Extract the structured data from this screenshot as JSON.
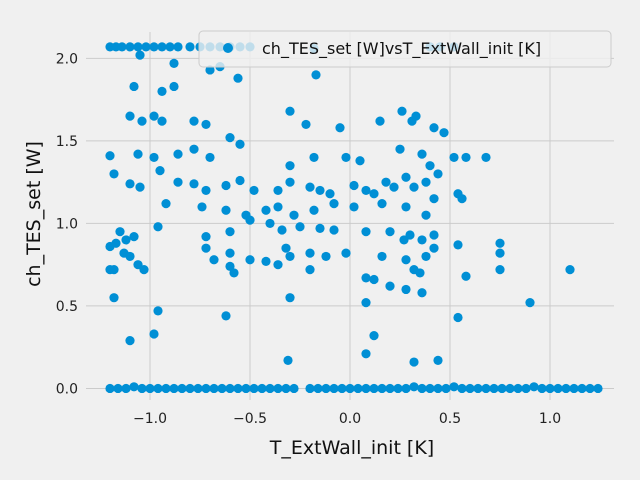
{
  "chart_data": {
    "type": "scatter",
    "xlabel": "T_ExtWall_init [K]",
    "ylabel": "ch_TES_set [W]",
    "legend_label": "ch_TES_set [W]vsT_ExtWall_init [K]",
    "legend_position": "top-right",
    "grid": true,
    "xlim": [
      -1.32,
      1.32
    ],
    "ylim": [
      -0.07,
      2.16
    ],
    "x_ticks": [
      -1.0,
      -0.5,
      0.0,
      0.5,
      1.0
    ],
    "x_tick_labels": [
      "−1.0",
      "−0.5",
      "0.0",
      "0.5",
      "1.0"
    ],
    "y_ticks": [
      0.0,
      0.5,
      1.0,
      1.5,
      2.0
    ],
    "y_tick_labels": [
      "0.0",
      "0.5",
      "1.0",
      "1.5",
      "2.0"
    ],
    "marker_color": "#008fd5",
    "series": [
      {
        "name": "ch_TES_set [W]vsT_ExtWall_init [K]",
        "points": [
          [
            -1.2,
            2.07
          ],
          [
            -1.17,
            2.07
          ],
          [
            -1.14,
            2.07
          ],
          [
            -1.1,
            2.07
          ],
          [
            -1.06,
            2.07
          ],
          [
            -1.02,
            2.07
          ],
          [
            -0.98,
            2.07
          ],
          [
            -0.94,
            2.07
          ],
          [
            -0.9,
            2.07
          ],
          [
            -0.86,
            2.07
          ],
          [
            -0.8,
            2.07
          ],
          [
            -0.75,
            2.07
          ],
          [
            -0.7,
            2.07
          ],
          [
            -0.65,
            2.07
          ],
          [
            -0.6,
            2.07
          ],
          [
            -0.55,
            2.07
          ],
          [
            -0.5,
            2.07
          ],
          [
            -0.18,
            2.06
          ],
          [
            0.4,
            2.07
          ],
          [
            0.45,
            2.07
          ],
          [
            0.52,
            2.07
          ],
          [
            -1.05,
            2.02
          ],
          [
            -0.88,
            1.97
          ],
          [
            -0.7,
            1.93
          ],
          [
            -0.65,
            1.95
          ],
          [
            -0.56,
            1.88
          ],
          [
            -0.17,
            1.9
          ],
          [
            -1.08,
            1.83
          ],
          [
            -0.94,
            1.8
          ],
          [
            -0.88,
            1.83
          ],
          [
            -0.3,
            1.68
          ],
          [
            0.26,
            1.68
          ],
          [
            -1.1,
            1.65
          ],
          [
            -1.04,
            1.62
          ],
          [
            -0.98,
            1.65
          ],
          [
            -0.94,
            1.62
          ],
          [
            -0.78,
            1.62
          ],
          [
            -0.72,
            1.6
          ],
          [
            -0.22,
            1.6
          ],
          [
            -0.05,
            1.58
          ],
          [
            0.15,
            1.62
          ],
          [
            0.31,
            1.62
          ],
          [
            0.33,
            1.65
          ],
          [
            0.42,
            1.58
          ],
          [
            0.47,
            1.55
          ],
          [
            -1.2,
            1.41
          ],
          [
            -1.06,
            1.42
          ],
          [
            -0.98,
            1.4
          ],
          [
            -0.86,
            1.42
          ],
          [
            -0.78,
            1.45
          ],
          [
            -0.7,
            1.4
          ],
          [
            -0.6,
            1.52
          ],
          [
            -0.55,
            1.48
          ],
          [
            -0.3,
            1.35
          ],
          [
            -0.18,
            1.4
          ],
          [
            -0.02,
            1.4
          ],
          [
            0.05,
            1.38
          ],
          [
            0.25,
            1.45
          ],
          [
            0.36,
            1.42
          ],
          [
            0.4,
            1.35
          ],
          [
            0.52,
            1.4
          ],
          [
            0.58,
            1.4
          ],
          [
            0.68,
            1.4
          ],
          [
            -1.18,
            1.3
          ],
          [
            -1.1,
            1.24
          ],
          [
            -1.05,
            1.22
          ],
          [
            -0.95,
            1.32
          ],
          [
            -0.86,
            1.25
          ],
          [
            -0.78,
            1.24
          ],
          [
            -0.72,
            1.2
          ],
          [
            -0.62,
            1.23
          ],
          [
            -0.55,
            1.26
          ],
          [
            -0.48,
            1.2
          ],
          [
            -0.36,
            1.2
          ],
          [
            -0.3,
            1.25
          ],
          [
            -0.2,
            1.22
          ],
          [
            -0.15,
            1.2
          ],
          [
            -0.1,
            1.18
          ],
          [
            0.02,
            1.23
          ],
          [
            0.08,
            1.2
          ],
          [
            0.12,
            1.18
          ],
          [
            0.18,
            1.25
          ],
          [
            0.22,
            1.22
          ],
          [
            0.28,
            1.28
          ],
          [
            0.32,
            1.22
          ],
          [
            0.38,
            1.25
          ],
          [
            0.44,
            1.3
          ],
          [
            0.54,
            1.18
          ],
          [
            0.56,
            1.15
          ],
          [
            -0.92,
            1.12
          ],
          [
            -0.74,
            1.1
          ],
          [
            -0.62,
            1.08
          ],
          [
            -0.52,
            1.05
          ],
          [
            -0.42,
            1.08
          ],
          [
            -0.36,
            1.1
          ],
          [
            -0.28,
            1.05
          ],
          [
            -0.18,
            1.08
          ],
          [
            -0.08,
            1.12
          ],
          [
            0.02,
            1.1
          ],
          [
            0.16,
            1.12
          ],
          [
            0.28,
            1.1
          ],
          [
            0.38,
            1.05
          ],
          [
            0.42,
            1.15
          ],
          [
            -1.15,
            0.95
          ],
          [
            -1.12,
            0.9
          ],
          [
            -1.08,
            0.92
          ],
          [
            -0.96,
            0.98
          ],
          [
            -0.72,
            0.92
          ],
          [
            -0.6,
            0.95
          ],
          [
            -0.5,
            1.02
          ],
          [
            -0.4,
            1.0
          ],
          [
            -0.34,
            0.96
          ],
          [
            -0.25,
            0.98
          ],
          [
            -0.15,
            0.97
          ],
          [
            -0.08,
            0.96
          ],
          [
            0.08,
            0.95
          ],
          [
            0.2,
            0.95
          ],
          [
            0.27,
            0.9
          ],
          [
            0.3,
            0.93
          ],
          [
            0.36,
            0.9
          ],
          [
            0.42,
            0.93
          ],
          [
            0.54,
            0.87
          ],
          [
            -1.2,
            0.86
          ],
          [
            -1.17,
            0.88
          ],
          [
            -1.13,
            0.82
          ],
          [
            -1.1,
            0.8
          ],
          [
            -1.06,
            0.75
          ],
          [
            -1.03,
            0.72
          ],
          [
            -1.2,
            0.72
          ],
          [
            -0.72,
            0.85
          ],
          [
            -0.6,
            0.82
          ],
          [
            -0.5,
            0.78
          ],
          [
            -0.32,
            0.85
          ],
          [
            -0.3,
            0.8
          ],
          [
            -0.2,
            0.82
          ],
          [
            -0.12,
            0.8
          ],
          [
            -0.02,
            0.82
          ],
          [
            0.16,
            0.8
          ],
          [
            0.28,
            0.78
          ],
          [
            0.38,
            0.8
          ],
          [
            0.42,
            0.85
          ],
          [
            0.75,
            0.88
          ],
          [
            0.75,
            0.82
          ],
          [
            -1.18,
            0.72
          ],
          [
            -0.68,
            0.78
          ],
          [
            -0.6,
            0.74
          ],
          [
            -0.58,
            0.7
          ],
          [
            -0.42,
            0.77
          ],
          [
            -0.36,
            0.75
          ],
          [
            -0.2,
            0.72
          ],
          [
            0.08,
            0.67
          ],
          [
            0.12,
            0.66
          ],
          [
            0.32,
            0.72
          ],
          [
            0.35,
            0.7
          ],
          [
            0.58,
            0.68
          ],
          [
            0.75,
            0.72
          ],
          [
            1.1,
            0.72
          ],
          [
            -0.62,
            0.44
          ],
          [
            -0.96,
            0.47
          ],
          [
            -0.3,
            0.55
          ],
          [
            -1.18,
            0.55
          ],
          [
            0.08,
            0.52
          ],
          [
            0.2,
            0.62
          ],
          [
            0.28,
            0.6
          ],
          [
            0.36,
            0.58
          ],
          [
            0.54,
            0.43
          ],
          [
            0.9,
            0.52
          ],
          [
            -1.1,
            0.29
          ],
          [
            -0.98,
            0.33
          ],
          [
            0.12,
            0.32
          ],
          [
            0.08,
            0.21
          ],
          [
            -0.31,
            0.17
          ],
          [
            0.32,
            0.16
          ],
          [
            0.44,
            0.17
          ],
          [
            -1.2,
            0.0
          ],
          [
            -1.16,
            0.0
          ],
          [
            -1.12,
            0.0
          ],
          [
            -1.08,
            0.01
          ],
          [
            -1.04,
            0.0
          ],
          [
            -1.0,
            0.0
          ],
          [
            -0.96,
            0.0
          ],
          [
            -0.92,
            0.0
          ],
          [
            -0.88,
            0.0
          ],
          [
            -0.84,
            0.0
          ],
          [
            -0.8,
            0.0
          ],
          [
            -0.76,
            0.0
          ],
          [
            -0.72,
            0.0
          ],
          [
            -0.68,
            0.0
          ],
          [
            -0.64,
            0.0
          ],
          [
            -0.6,
            0.0
          ],
          [
            -0.56,
            0.0
          ],
          [
            -0.52,
            0.0
          ],
          [
            -0.48,
            0.0
          ],
          [
            -0.44,
            0.0
          ],
          [
            -0.4,
            0.0
          ],
          [
            -0.36,
            0.0
          ],
          [
            -0.32,
            0.0
          ],
          [
            -0.28,
            0.0
          ],
          [
            -0.2,
            0.0
          ],
          [
            -0.16,
            0.0
          ],
          [
            -0.12,
            0.0
          ],
          [
            -0.08,
            0.0
          ],
          [
            -0.04,
            0.0
          ],
          [
            0.0,
            0.0
          ],
          [
            0.04,
            0.0
          ],
          [
            0.08,
            0.0
          ],
          [
            0.12,
            0.0
          ],
          [
            0.16,
            0.0
          ],
          [
            0.2,
            0.0
          ],
          [
            0.24,
            0.0
          ],
          [
            0.28,
            0.0
          ],
          [
            0.32,
            0.01
          ],
          [
            0.36,
            0.0
          ],
          [
            0.4,
            0.0
          ],
          [
            0.44,
            0.0
          ],
          [
            0.48,
            0.0
          ],
          [
            0.52,
            0.01
          ],
          [
            0.56,
            0.0
          ],
          [
            0.6,
            0.0
          ],
          [
            0.64,
            0.0
          ],
          [
            0.68,
            0.0
          ],
          [
            0.72,
            0.0
          ],
          [
            0.76,
            0.0
          ],
          [
            0.8,
            0.0
          ],
          [
            0.84,
            0.0
          ],
          [
            0.88,
            0.0
          ],
          [
            0.92,
            0.01
          ],
          [
            0.96,
            0.0
          ],
          [
            1.0,
            0.0
          ],
          [
            1.04,
            0.0
          ],
          [
            1.08,
            0.0
          ],
          [
            1.12,
            0.0
          ],
          [
            1.16,
            0.0
          ],
          [
            1.2,
            0.0
          ],
          [
            1.24,
            0.0
          ]
        ]
      }
    ]
  }
}
